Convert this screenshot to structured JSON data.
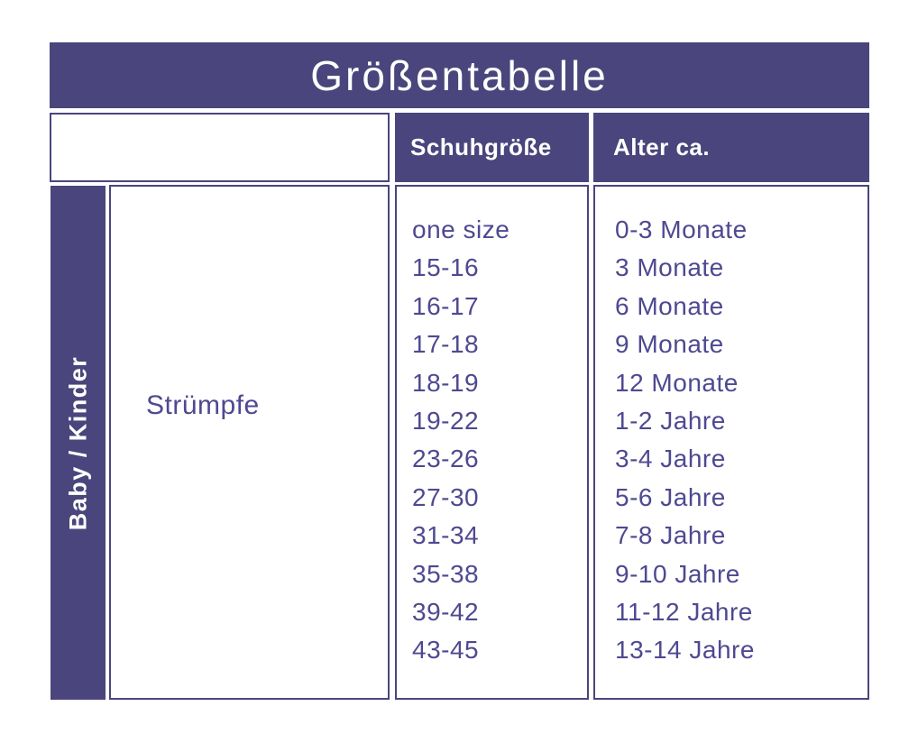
{
  "title": "Größentabelle",
  "colors": {
    "primary": "#4a457c",
    "text": "#4e4991",
    "header_text": "#ffffff",
    "background": "#ffffff"
  },
  "header": {
    "shoe_size": "Schuhgröße",
    "age": "Alter ca."
  },
  "sidebar": {
    "label": "Baby / Kinder"
  },
  "category": {
    "label": "Strümpfe"
  },
  "table": {
    "columns": [
      "Schuhgröße",
      "Alter ca."
    ],
    "rows": [
      {
        "shoe_size": "one size",
        "age": "0-3 Monate"
      },
      {
        "shoe_size": "15-16",
        "age": "3 Monate"
      },
      {
        "shoe_size": "16-17",
        "age": "6 Monate"
      },
      {
        "shoe_size": "17-18",
        "age": "9 Monate"
      },
      {
        "shoe_size": "18-19",
        "age": "12 Monate"
      },
      {
        "shoe_size": "19-22",
        "age": "1-2 Jahre"
      },
      {
        "shoe_size": "23-26",
        "age": "3-4 Jahre"
      },
      {
        "shoe_size": "27-30",
        "age": "5-6 Jahre"
      },
      {
        "shoe_size": "31-34",
        "age": "7-8 Jahre"
      },
      {
        "shoe_size": "35-38",
        "age": "9-10 Jahre"
      },
      {
        "shoe_size": "39-42",
        "age": "11-12 Jahre"
      },
      {
        "shoe_size": "43-45",
        "age": "13-14 Jahre"
      }
    ]
  }
}
